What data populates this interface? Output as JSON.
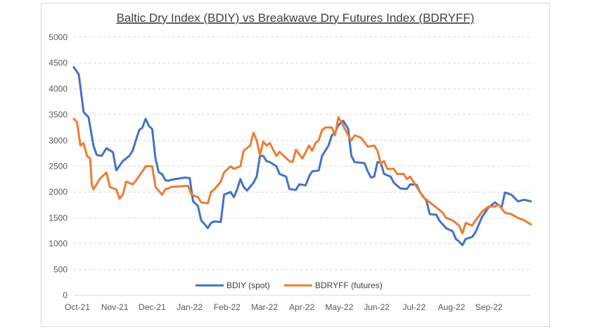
{
  "chart_data": {
    "type": "line",
    "title": "Baltic Dry Index (BDIY) vs Breakwave Dry Futures Index (BDRYFF)",
    "xlabel": "",
    "ylabel": "",
    "ylim": [
      0,
      5000
    ],
    "yticks": [
      0,
      500,
      1000,
      1500,
      2000,
      2500,
      3000,
      3500,
      4000,
      4500,
      5000
    ],
    "xtick_labels": [
      "Oct-21",
      "Nov-21",
      "Dec-21",
      "Jan-22",
      "Feb-22",
      "Mar-22",
      "Apr-22",
      "May-22",
      "Jun-22",
      "Jul-22",
      "Aug-22",
      "Sep-22"
    ],
    "grid": true,
    "legend_position": "bottom",
    "series": [
      {
        "name": "BDIY (spot)",
        "color": "#4472c4",
        "points": [
          [
            0,
            4420
          ],
          [
            0.15,
            4280
          ],
          [
            0.3,
            3550
          ],
          [
            0.45,
            3450
          ],
          [
            0.6,
            2900
          ],
          [
            0.7,
            2720
          ],
          [
            0.85,
            2700
          ],
          [
            1.0,
            2850
          ],
          [
            1.2,
            2770
          ],
          [
            1.3,
            2420
          ],
          [
            1.5,
            2600
          ],
          [
            1.7,
            2700
          ],
          [
            1.8,
            2800
          ],
          [
            1.9,
            3000
          ],
          [
            2.0,
            3200
          ],
          [
            2.1,
            3250
          ],
          [
            2.2,
            3420
          ],
          [
            2.3,
            3280
          ],
          [
            2.4,
            3220
          ],
          [
            2.5,
            2650
          ],
          [
            2.6,
            2380
          ],
          [
            2.7,
            2350
          ],
          [
            2.8,
            2230
          ],
          [
            2.9,
            2220
          ],
          [
            3.0,
            2240
          ],
          [
            3.2,
            2260
          ],
          [
            3.4,
            2280
          ],
          [
            3.55,
            2270
          ],
          [
            3.65,
            1820
          ],
          [
            3.8,
            1730
          ],
          [
            3.9,
            1450
          ],
          [
            4.0,
            1380
          ],
          [
            4.1,
            1300
          ],
          [
            4.2,
            1400
          ],
          [
            4.3,
            1430
          ],
          [
            4.5,
            1420
          ],
          [
            4.6,
            1950
          ],
          [
            4.8,
            2000
          ],
          [
            4.9,
            1900
          ],
          [
            5.0,
            2050
          ],
          [
            5.1,
            2250
          ],
          [
            5.2,
            2100
          ],
          [
            5.3,
            2030
          ],
          [
            5.5,
            2180
          ],
          [
            5.6,
            2300
          ],
          [
            5.7,
            2700
          ],
          [
            5.8,
            2700
          ],
          [
            5.9,
            2600
          ],
          [
            6.0,
            2580
          ],
          [
            6.2,
            2500
          ],
          [
            6.3,
            2350
          ],
          [
            6.5,
            2300
          ],
          [
            6.6,
            2060
          ],
          [
            6.8,
            2040
          ],
          [
            6.9,
            2150
          ],
          [
            7.1,
            2130
          ],
          [
            7.2,
            2300
          ],
          [
            7.3,
            2400
          ],
          [
            7.5,
            2420
          ],
          [
            7.6,
            2700
          ],
          [
            7.8,
            2900
          ],
          [
            7.9,
            3100
          ],
          [
            8.0,
            3150
          ],
          [
            8.1,
            3300
          ],
          [
            8.25,
            3380
          ],
          [
            8.4,
            3230
          ],
          [
            8.5,
            2700
          ],
          [
            8.6,
            2580
          ],
          [
            8.9,
            2560
          ],
          [
            9.0,
            2400
          ],
          [
            9.1,
            2280
          ],
          [
            9.2,
            2300
          ],
          [
            9.3,
            2580
          ],
          [
            9.4,
            2570
          ],
          [
            9.5,
            2350
          ],
          [
            9.7,
            2300
          ],
          [
            9.8,
            2180
          ],
          [
            10.0,
            2070
          ],
          [
            10.2,
            2060
          ],
          [
            10.3,
            2150
          ],
          [
            10.5,
            2140
          ],
          [
            10.6,
            2000
          ],
          [
            10.8,
            1830
          ],
          [
            10.9,
            1570
          ],
          [
            11.1,
            1560
          ],
          [
            11.2,
            1440
          ],
          [
            11.4,
            1300
          ],
          [
            11.6,
            1240
          ],
          [
            11.7,
            1090
          ],
          [
            11.8,
            1040
          ],
          [
            11.9,
            970
          ],
          [
            12.0,
            1090
          ],
          [
            12.2,
            1130
          ],
          [
            12.3,
            1220
          ],
          [
            12.5,
            1520
          ],
          [
            12.7,
            1700
          ],
          [
            12.9,
            1800
          ],
          [
            13.1,
            1700
          ],
          [
            13.2,
            1990
          ],
          [
            13.4,
            1950
          ],
          [
            13.6,
            1820
          ],
          [
            13.8,
            1850
          ],
          [
            14.0,
            1820
          ]
        ]
      },
      {
        "name": "BDRYFF (futures)",
        "color": "#ed7d31",
        "points": [
          [
            0,
            3420
          ],
          [
            0.1,
            3350
          ],
          [
            0.2,
            2900
          ],
          [
            0.3,
            2950
          ],
          [
            0.4,
            2700
          ],
          [
            0.5,
            2650
          ],
          [
            0.55,
            2150
          ],
          [
            0.6,
            2050
          ],
          [
            0.8,
            2260
          ],
          [
            1.0,
            2380
          ],
          [
            1.1,
            2100
          ],
          [
            1.3,
            2050
          ],
          [
            1.4,
            1870
          ],
          [
            1.5,
            1950
          ],
          [
            1.6,
            2200
          ],
          [
            1.8,
            2150
          ],
          [
            1.9,
            2220
          ],
          [
            2.1,
            2400
          ],
          [
            2.2,
            2500
          ],
          [
            2.4,
            2500
          ],
          [
            2.5,
            2100
          ],
          [
            2.7,
            1950
          ],
          [
            2.8,
            2050
          ],
          [
            3.0,
            2100
          ],
          [
            3.5,
            2120
          ],
          [
            3.6,
            1950
          ],
          [
            3.8,
            1900
          ],
          [
            3.9,
            1800
          ],
          [
            4.1,
            1780
          ],
          [
            4.2,
            2000
          ],
          [
            4.3,
            2050
          ],
          [
            4.5,
            2200
          ],
          [
            4.6,
            2380
          ],
          [
            4.8,
            2500
          ],
          [
            4.9,
            2450
          ],
          [
            5.1,
            2500
          ],
          [
            5.2,
            2800
          ],
          [
            5.4,
            2900
          ],
          [
            5.5,
            3150
          ],
          [
            5.6,
            3000
          ],
          [
            5.7,
            2720
          ],
          [
            5.8,
            2980
          ],
          [
            5.9,
            2900
          ],
          [
            6.0,
            2950
          ],
          [
            6.2,
            2700
          ],
          [
            6.3,
            2780
          ],
          [
            6.4,
            2720
          ],
          [
            6.6,
            2600
          ],
          [
            6.7,
            2580
          ],
          [
            6.8,
            2820
          ],
          [
            7.0,
            2650
          ],
          [
            7.2,
            2900
          ],
          [
            7.3,
            2800
          ],
          [
            7.4,
            2950
          ],
          [
            7.5,
            3000
          ],
          [
            7.6,
            3200
          ],
          [
            7.7,
            3250
          ],
          [
            7.9,
            3250
          ],
          [
            8.0,
            3100
          ],
          [
            8.1,
            3450
          ],
          [
            8.2,
            3350
          ],
          [
            8.4,
            3100
          ],
          [
            8.5,
            3000
          ],
          [
            8.6,
            3100
          ],
          [
            8.8,
            3050
          ],
          [
            9.0,
            2880
          ],
          [
            9.2,
            2900
          ],
          [
            9.3,
            2800
          ],
          [
            9.4,
            2550
          ],
          [
            9.5,
            2600
          ],
          [
            9.6,
            2450
          ],
          [
            9.8,
            2450
          ],
          [
            9.9,
            2350
          ],
          [
            10.1,
            2350
          ],
          [
            10.2,
            2250
          ],
          [
            10.3,
            2300
          ],
          [
            10.5,
            2100
          ],
          [
            10.6,
            2000
          ],
          [
            10.7,
            1900
          ],
          [
            10.9,
            1800
          ],
          [
            11.1,
            1700
          ],
          [
            11.3,
            1600
          ],
          [
            11.4,
            1500
          ],
          [
            11.6,
            1450
          ],
          [
            11.8,
            1350
          ],
          [
            11.9,
            1200
          ],
          [
            12.0,
            1400
          ],
          [
            12.2,
            1350
          ],
          [
            12.3,
            1450
          ],
          [
            12.5,
            1620
          ],
          [
            12.7,
            1720
          ],
          [
            12.9,
            1720
          ],
          [
            13.0,
            1760
          ],
          [
            13.2,
            1600
          ],
          [
            13.4,
            1570
          ],
          [
            13.6,
            1500
          ],
          [
            13.8,
            1450
          ],
          [
            14.0,
            1370
          ]
        ]
      }
    ]
  }
}
